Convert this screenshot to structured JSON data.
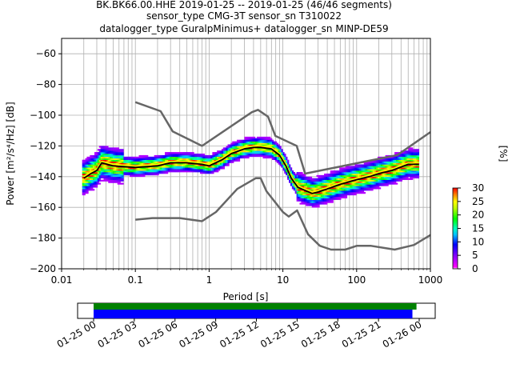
{
  "chart_data": {
    "type": "heatmap",
    "title_lines": [
      "BK.BK66.00.HHE   2019-01-25 -- 2019-01-25  (46/46 segments)",
      "sensor_type CMG-3T sensor_sn T310022",
      "datalogger_type GuralpMinimus+ datalogger_sn MINP-DE59"
    ],
    "xlabel": "Period [s]",
    "ylabel": "Power [m²/s⁴/Hz] [dB]",
    "x_scale": "log",
    "xlim": [
      0.01,
      1000
    ],
    "ylim": [
      -200,
      -50
    ],
    "x_tick_values": [
      0.01,
      0.1,
      1,
      10,
      100,
      1000
    ],
    "x_tick_labels": [
      "0.01",
      "0.1",
      "1",
      "10",
      "100",
      "1000"
    ],
    "y_tick_values": [
      -200,
      -180,
      -160,
      -140,
      -120,
      -100,
      -80,
      -60
    ],
    "y_tick_labels": [
      "−200",
      "−180",
      "−160",
      "−140",
      "−120",
      "−100",
      "−80",
      "−60"
    ],
    "grid": true,
    "colorbar": {
      "label": "[%]",
      "range": [
        0,
        30
      ],
      "tick_values": [
        0,
        5,
        10,
        15,
        20,
        25,
        30
      ],
      "tick_labels": [
        "0",
        "5",
        "10",
        "15",
        "20",
        "25",
        "30"
      ]
    },
    "nhnm": {
      "name": "NHNM",
      "x": [
        0.1,
        0.22,
        0.32,
        0.8,
        3.8,
        4.6,
        6.3,
        7.9,
        15.4,
        20,
        354.8,
        1000
      ],
      "y": [
        -91.5,
        -97.4,
        -110.5,
        -120,
        -98,
        -96.5,
        -101,
        -113.5,
        -120,
        -138,
        -126,
        -111
      ]
    },
    "nlnm": {
      "name": "NLNM",
      "x": [
        0.1,
        0.17,
        0.4,
        0.8,
        1.24,
        2.4,
        4.3,
        5,
        6,
        10,
        12,
        15.6,
        21.9,
        31.6,
        45,
        70,
        101,
        154,
        328,
        600,
        1000
      ],
      "y": [
        -168,
        -167,
        -167,
        -169,
        -163,
        -148,
        -141,
        -141,
        -149.5,
        -163,
        -166,
        -162,
        -177.5,
        -185,
        -187.5,
        -187.5,
        -185,
        -185,
        -187.5,
        -184.5,
        -178
      ]
    },
    "mean_curve": {
      "name": "mean",
      "x": [
        0.02,
        0.025,
        0.03,
        0.035,
        0.05,
        0.1,
        0.2,
        0.3,
        0.5,
        0.8,
        1,
        1.5,
        2,
        3,
        4,
        5,
        7,
        9,
        11,
        13,
        16,
        20,
        25,
        30,
        40,
        60,
        100,
        150,
        200,
        300,
        500,
        700
      ],
      "y": [
        -141,
        -138,
        -136,
        -131,
        -133,
        -134,
        -133,
        -131,
        -131,
        -132,
        -133,
        -129,
        -125,
        -122,
        -121,
        -121,
        -122,
        -126,
        -133,
        -141,
        -147,
        -149,
        -151,
        -150,
        -148,
        -145,
        -142,
        -140,
        -138,
        -136,
        -132,
        -132
      ]
    },
    "mode_curve": {
      "name": "mode",
      "x": [
        0.02,
        0.025,
        0.03,
        0.035,
        0.05,
        0.1,
        0.2,
        0.3,
        0.5,
        0.8,
        1,
        1.5,
        2,
        3,
        4,
        5,
        7,
        9,
        11,
        13,
        16,
        20,
        25,
        30,
        40,
        60,
        100,
        150,
        200,
        300,
        500,
        700
      ],
      "y": [
        -140,
        -137,
        -135,
        -130,
        -132,
        -133,
        -132,
        -130,
        -130,
        -131,
        -132,
        -128,
        -124,
        -121,
        -120,
        -120,
        -121,
        -125,
        -132,
        -140,
        -146,
        -148,
        -150,
        -149,
        -147,
        -144,
        -141,
        -139,
        -137,
        -135,
        -131,
        -131
      ]
    },
    "timeline": {
      "tick_labels": [
        "01-25 00",
        "01-25 03",
        "01-25 06",
        "01-25 09",
        "01-25 12",
        "01-25 15",
        "01-25 18",
        "01-25 21",
        "01-26 00"
      ],
      "data_coverage_hours": [
        0,
        23.8
      ],
      "psd_coverage_hours": [
        0,
        23.5
      ],
      "data_color": "#008000",
      "psd_color": "#0000ff"
    },
    "colors": {
      "model_lines": "#666666",
      "mean_line": "#000000",
      "mode_line": "#ffff00"
    }
  }
}
